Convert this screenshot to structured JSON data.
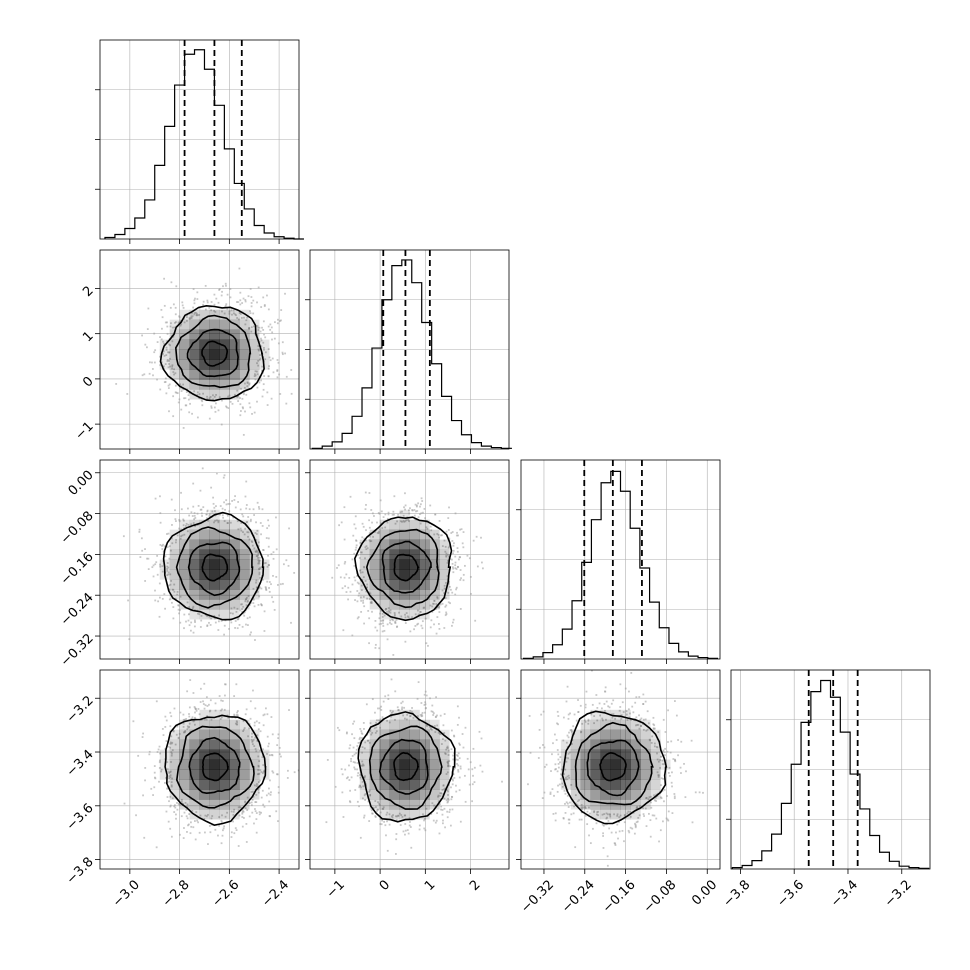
{
  "chart_data": {
    "type": "corner",
    "parameters": [
      {
        "range": [
          -3.12,
          -2.32
        ],
        "ticks": [
          -3.0,
          -2.8,
          -2.6,
          -2.4
        ],
        "tick_labels": [
          "−3.0",
          "−2.8",
          "−2.6",
          "−2.4"
        ],
        "mean": -2.66,
        "sd": 0.1,
        "quantiles": [
          -2.78,
          -2.66,
          -2.55
        ]
      },
      {
        "range": [
          -1.55,
          2.85
        ],
        "ticks": [
          -1,
          0,
          1,
          2
        ],
        "tick_labels": [
          "−1",
          "0",
          "1",
          "2"
        ],
        "mean": 0.56,
        "sd": 0.52,
        "quantiles": [
          0.07,
          0.56,
          1.1
        ]
      },
      {
        "range": [
          -0.365,
          0.025
        ],
        "ticks": [
          -0.32,
          -0.24,
          -0.16,
          -0.08,
          0.0
        ],
        "tick_labels": [
          "−0.32",
          "−0.24",
          "−0.16",
          "−0.08",
          "0.00"
        ],
        "mean": -0.185,
        "sd": 0.05,
        "quantiles": [
          -0.241,
          -0.185,
          -0.128
        ]
      },
      {
        "range": [
          -3.835,
          -3.095
        ],
        "ticks": [
          -3.8,
          -3.6,
          -3.4,
          -3.2
        ],
        "tick_labels": [
          "−3.8",
          "−3.6",
          "−3.4",
          "−3.2"
        ],
        "mean": -3.455,
        "sd": 0.1,
        "quantiles": [
          -3.546,
          -3.455,
          -3.364
        ]
      }
    ],
    "histograms": [
      {
        "param": 0,
        "range": [
          -3.1,
          -2.3
        ],
        "bins": 20,
        "counts": [
          2,
          6,
          14,
          28,
          52,
          98,
          150,
          205,
          246,
          252,
          226,
          178,
          120,
          74,
          40,
          18,
          8,
          3,
          1,
          0
        ],
        "max": 265
      },
      {
        "param": 1,
        "range": [
          -1.5,
          2.9
        ],
        "bins": 20,
        "counts": [
          1,
          4,
          10,
          22,
          46,
          86,
          142,
          210,
          258,
          266,
          234,
          178,
          120,
          74,
          40,
          20,
          9,
          4,
          2,
          1
        ],
        "max": 280
      },
      {
        "param": 2,
        "range": [
          -0.36,
          0.02
        ],
        "bins": 20,
        "counts": [
          1,
          3,
          9,
          20,
          42,
          82,
          136,
          196,
          248,
          264,
          236,
          184,
          128,
          80,
          44,
          22,
          10,
          4,
          2,
          1
        ],
        "max": 280
      },
      {
        "param": 3,
        "range": [
          -3.83,
          -3.1
        ],
        "bins": 20,
        "counts": [
          2,
          5,
          12,
          26,
          50,
          94,
          150,
          210,
          254,
          270,
          246,
          196,
          136,
          86,
          48,
          24,
          11,
          4,
          2,
          1
        ],
        "max": 285
      }
    ],
    "density_panels": [
      {
        "x": 0,
        "y": 1
      },
      {
        "x": 0,
        "y": 2
      },
      {
        "x": 1,
        "y": 2
      },
      {
        "x": 0,
        "y": 3
      },
      {
        "x": 1,
        "y": 3
      },
      {
        "x": 2,
        "y": 3
      }
    ],
    "contour_levels_sigma": [
      0.5,
      1.0,
      1.5,
      2.0
    ],
    "grid": true,
    "colors": {
      "line": "#000000",
      "scatter": "#9a9a9a",
      "density": "#000000",
      "grid": "#b0b0b0"
    }
  }
}
